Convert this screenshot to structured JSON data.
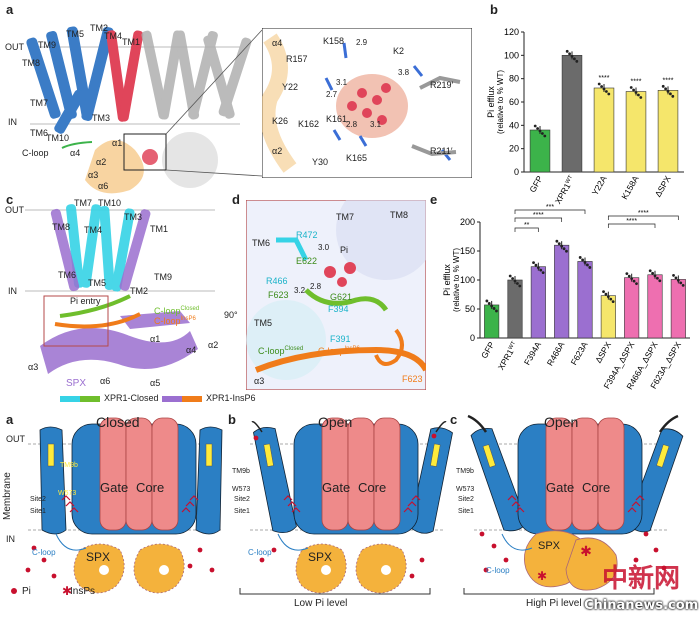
{
  "panel_letters": {
    "a": "a",
    "b": "b",
    "c": "c",
    "d": "d",
    "e": "e",
    "a2": "a",
    "b2": "b",
    "c2": "c"
  },
  "panel_a": {
    "out": "OUT",
    "in": "IN",
    "tm_labels": [
      "TM9",
      "TM5",
      "TM2",
      "TM4",
      "TM1",
      "TM8",
      "TM7",
      "TM6",
      "TM10",
      "TM3"
    ],
    "cloop": "C-loop",
    "alpha": [
      "α1",
      "α2",
      "α3",
      "α4",
      "α6"
    ],
    "zoom_residues": [
      "K158",
      "R157",
      "K2",
      "Y22",
      "K26",
      "K162",
      "K161",
      "Y30",
      "K165",
      "R219′",
      "R211′"
    ],
    "zoom_alpha": [
      "α4",
      "α2"
    ],
    "distances": [
      "2.9",
      "3.8",
      "3.1",
      "2.7",
      "2.8",
      "3.1"
    ]
  },
  "panel_c": {
    "out": "OUT",
    "in": "IN",
    "tm_labels": [
      "TM7",
      "TM10",
      "TM3",
      "TM1",
      "TM8",
      "TM4",
      "TM6",
      "TM9",
      "TM5",
      "TM2"
    ],
    "pi_entry": "Pi entry",
    "cloop_closed": "C-loop",
    "cloop_closed_sup": "Closed",
    "cloop_insp6": "C-loop",
    "cloop_insp6_sup": "InsP6",
    "alpha": [
      "α1",
      "α4",
      "α2",
      "α3",
      "α6",
      "α5"
    ],
    "spx": "SPX",
    "rotate": "90°",
    "legend": [
      "XPR1-Closed",
      "XPR1-InsP6"
    ]
  },
  "panel_d": {
    "labels": [
      "TM7",
      "TM8",
      "TM6",
      "R472",
      "Pi",
      "E622",
      "R466",
      "F623",
      "G621",
      "F394",
      "TM5",
      "F391",
      "C-loop",
      "C-loop",
      "α3",
      "F623"
    ],
    "distances": [
      "3.0",
      "2.8",
      "3.2"
    ],
    "sup_closed": "Closed",
    "sup_insp6": "InsP6"
  },
  "chart_data": [
    {
      "type": "bar",
      "panel": "b",
      "categories": [
        "GFP",
        "XPR1WT",
        "Y22A",
        "K158A",
        "ΔSPX"
      ],
      "values": [
        36,
        100,
        72,
        69,
        70
      ],
      "ylabel": "Pi efflux",
      "ylabel2": "(relative to % WT)",
      "ylim": [
        0,
        120
      ],
      "yticks": [
        0,
        20,
        40,
        60,
        80,
        100,
        120
      ],
      "bar_colors": [
        "#3cb34a",
        "#6b6b6b",
        "#f5e66b",
        "#f5e66b",
        "#f5e66b"
      ],
      "annotations": [
        "",
        "",
        "****",
        "****",
        "****"
      ]
    },
    {
      "type": "bar",
      "panel": "e",
      "categories": [
        "GFP",
        "XPR1WT",
        "F394A",
        "R466A",
        "F623A",
        "ΔSPX",
        "F394A_ΔSPX",
        "R466A_ΔSPX",
        "F623A_ΔSPX"
      ],
      "values": [
        57,
        100,
        123,
        160,
        132,
        73,
        104,
        109,
        101
      ],
      "ylabel": "Pi efflux",
      "ylabel2": "(relative to % WT)",
      "ylim": [
        0,
        200
      ],
      "yticks": [
        0,
        50,
        100,
        150,
        200
      ],
      "bar_colors": [
        "#3cb34a",
        "#6b6b6b",
        "#9b6fd0",
        "#9b6fd0",
        "#9b6fd0",
        "#f5e66b",
        "#ee6fb0",
        "#ee6fb0",
        "#ee6fb0"
      ],
      "significance": [
        "***",
        "****",
        "**",
        "****",
        "****"
      ]
    }
  ],
  "schematic": {
    "panels": [
      {
        "letter": "a",
        "title": "Closed"
      },
      {
        "letter": "b",
        "title": "Open"
      },
      {
        "letter": "c",
        "title": "Open"
      }
    ],
    "out": "OUT",
    "membrane": "Membrane",
    "in": "IN",
    "gate": "Gate",
    "core": "Core",
    "spx": "SPX",
    "tm9b": "TM9b",
    "w573": "W573",
    "site2": "Site2",
    "site1": "Site1",
    "cloop": "C-loop",
    "legend_pi": "Pi",
    "legend_insps": "InsPs",
    "low_pi": "Low Pi level",
    "high_pi": "High Pi level"
  },
  "watermark": {
    "cn": "中新网",
    "url": "Chinanews.com"
  }
}
